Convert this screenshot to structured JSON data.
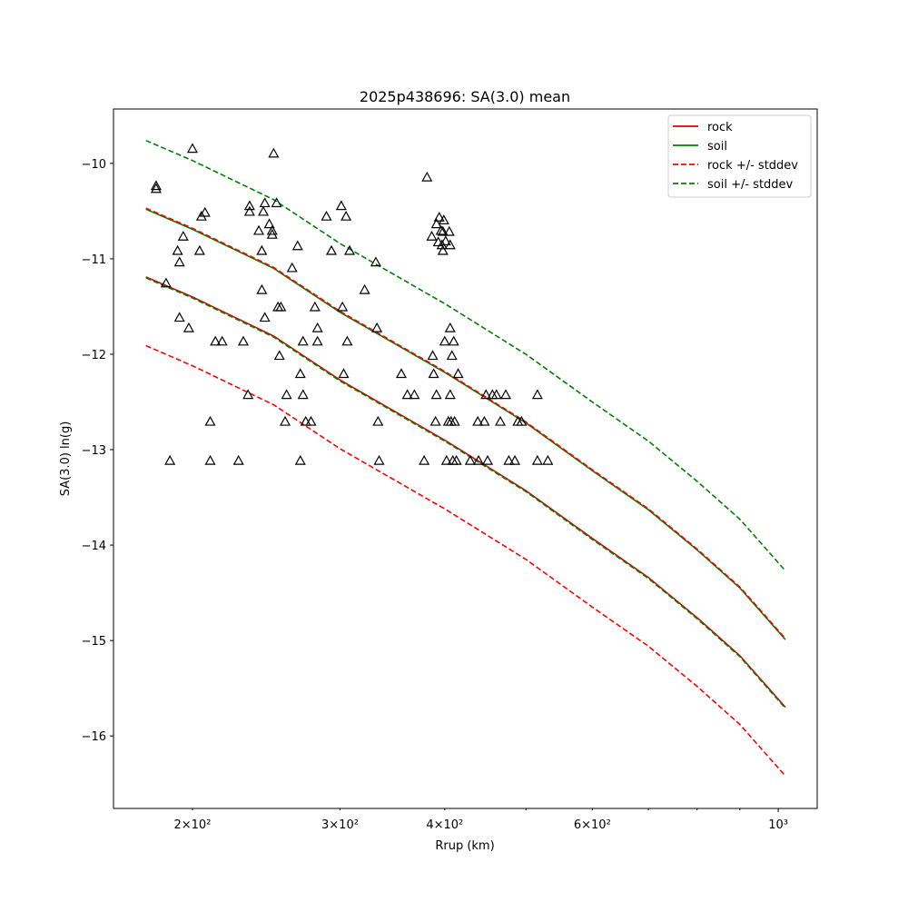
{
  "chart_data": {
    "type": "line",
    "title": "2025p438696: SA(3.0) mean",
    "x_label": "Rrup (km)",
    "y_label": "SA(3.0) ln(g)",
    "xscale": "log",
    "xlim": [
      161,
      1113
    ],
    "ylim": [
      -16.76,
      -9.43
    ],
    "xticks": [
      {
        "value": 200,
        "label": "2×10²"
      },
      {
        "value": 300,
        "label": "3×10²"
      },
      {
        "value": 400,
        "label": "4×10²"
      },
      {
        "value": 600,
        "label": "6×10²"
      },
      {
        "value": 1000,
        "label": "10³"
      }
    ],
    "xminorticks": [
      500,
      700,
      800,
      900
    ],
    "yticks": [
      {
        "value": -10,
        "label": "−10"
      },
      {
        "value": -11,
        "label": "−11"
      },
      {
        "value": -12,
        "label": "−12"
      },
      {
        "value": -13,
        "label": "−13"
      },
      {
        "value": -14,
        "label": "−14"
      },
      {
        "value": -15,
        "label": "−15"
      },
      {
        "value": -16,
        "label": "−16"
      }
    ],
    "legend": "upper right",
    "x": [
      176,
      200,
      250,
      300,
      400,
      500,
      600,
      700,
      800,
      900,
      1020
    ],
    "series": [
      {
        "name": "rock",
        "color": "#e00000",
        "style": "solid",
        "values": [
          -11.19,
          -11.4,
          -11.81,
          -12.27,
          -12.9,
          -13.43,
          -13.93,
          -14.34,
          -14.76,
          -15.16,
          -15.7
        ]
      },
      {
        "name": "soil",
        "color": "#008000",
        "style": "solid",
        "values": [
          -10.48,
          -10.69,
          -11.1,
          -11.56,
          -12.19,
          -12.72,
          -13.22,
          -13.63,
          -14.05,
          -14.45,
          -14.99
        ]
      },
      {
        "name": "rock +/- stddev",
        "color": "#ff0000",
        "style": "dashed",
        "upper": [
          -10.47,
          -10.68,
          -11.09,
          -11.55,
          -12.18,
          -12.71,
          -13.21,
          -13.62,
          -14.04,
          -14.44,
          -14.98
        ],
        "lower": [
          -11.91,
          -12.12,
          -12.53,
          -12.99,
          -13.62,
          -14.15,
          -14.65,
          -15.06,
          -15.48,
          -15.88,
          -16.42
        ]
      },
      {
        "name": "soil +/- stddev",
        "color": "#008000",
        "style": "dashed",
        "upper": [
          -9.76,
          -9.97,
          -10.38,
          -10.84,
          -11.47,
          -12.0,
          -12.5,
          -12.91,
          -13.33,
          -13.73,
          -14.27
        ],
        "lower": [
          -11.2,
          -11.41,
          -11.82,
          -12.28,
          -12.91,
          -13.44,
          -13.94,
          -14.35,
          -14.77,
          -15.17,
          -15.71
        ]
      }
    ],
    "points": {
      "color": "#000000",
      "marker": "triangle",
      "x": [
        181,
        181,
        186,
        188,
        192,
        193,
        193,
        195,
        198,
        200,
        204,
        205,
        207,
        210,
        210,
        213,
        217,
        227,
        230,
        233,
        234,
        234,
        240,
        242,
        242,
        243,
        244,
        244,
        247,
        249,
        249,
        250,
        252,
        253,
        254,
        255,
        258,
        259,
        263,
        267,
        269,
        269,
        271,
        271,
        273,
        277,
        280,
        282,
        282,
        289,
        293,
        301,
        302,
        303,
        305,
        306,
        308,
        321,
        331,
        332,
        333,
        334,
        355,
        361,
        368,
        378,
        381,
        386,
        387,
        388,
        390,
        391,
        391,
        393,
        394,
        396,
        397,
        398,
        398,
        399,
        400,
        401,
        402,
        404,
        405,
        406,
        406,
        406,
        407,
        408,
        409,
        410,
        411,
        413,
        415,
        429,
        438,
        439,
        446,
        448,
        450,
        456,
        461,
        466,
        473,
        477,
        485,
        489,
        494,
        516,
        516,
        531
      ],
      "y": [
        -10.24,
        -10.27,
        -11.26,
        -13.12,
        -10.92,
        -11.04,
        -11.62,
        -10.77,
        -11.73,
        -9.85,
        -10.92,
        -10.56,
        -10.52,
        -13.12,
        -12.71,
        -11.87,
        -11.87,
        -13.12,
        -11.87,
        -12.43,
        -10.45,
        -10.51,
        -10.71,
        -10.92,
        -11.33,
        -10.51,
        -10.42,
        -11.62,
        -10.64,
        -10.71,
        -10.75,
        -9.9,
        -10.42,
        -11.51,
        -12.02,
        -11.51,
        -12.71,
        -12.43,
        -11.1,
        -10.87,
        -12.21,
        -13.12,
        -11.87,
        -12.43,
        -12.71,
        -12.71,
        -11.51,
        -11.73,
        -11.87,
        -10.56,
        -10.92,
        -10.45,
        -11.51,
        -12.21,
        -10.56,
        -11.87,
        -10.92,
        -11.33,
        -11.04,
        -11.73,
        -12.71,
        -13.12,
        -12.21,
        -12.43,
        -12.43,
        -13.12,
        -10.15,
        -10.77,
        -12.02,
        -12.21,
        -12.71,
        -10.64,
        -12.43,
        -10.83,
        -10.57,
        -10.71,
        -10.86,
        -10.72,
        -10.92,
        -10.6,
        -11.87,
        -10.82,
        -13.12,
        -12.71,
        -10.72,
        -12.43,
        -10.86,
        -11.73,
        -12.71,
        -12.02,
        -13.12,
        -11.87,
        -12.71,
        -13.12,
        -12.21,
        -13.12,
        -12.71,
        -13.12,
        -12.71,
        -12.43,
        -13.12,
        -12.43,
        -12.43,
        -12.71,
        -12.43,
        -13.12,
        -13.12,
        -12.71,
        -12.71,
        -12.43,
        -13.12,
        -13.12
      ]
    }
  }
}
